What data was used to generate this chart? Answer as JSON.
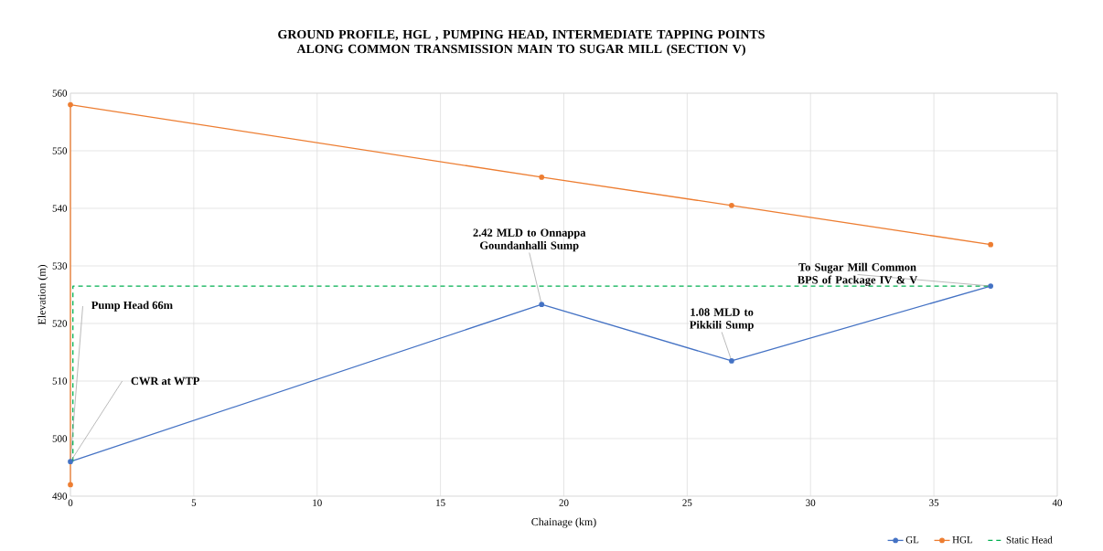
{
  "chart_data": {
    "type": "line",
    "title": "GROUND PROFILE, HGL , PUMPING HEAD, INTERMEDIATE TAPPING POINTS ALONG  COMMON TRANSMISSION MAIN TO SUGAR MILL (SECTION  V)",
    "xlabel": "Chainage  (km)",
    "ylabel": "Elevation (m)",
    "xlim": [
      0,
      40
    ],
    "xticks": [
      0,
      5,
      10,
      15,
      20,
      25,
      30,
      35,
      40
    ],
    "ylim": [
      490,
      560
    ],
    "yticks": [
      490,
      500,
      510,
      520,
      530,
      540,
      550,
      560
    ],
    "grid": true,
    "legend": "bottom right",
    "series": [
      {
        "name": "GL",
        "color": "#4472c4",
        "marker": "circle",
        "line_style": "solid",
        "x": [
          0,
          19.1,
          26.8,
          37.3
        ],
        "values": [
          496,
          523.3,
          513.5,
          526.5
        ]
      },
      {
        "name": "HGL",
        "color": "#ed7d31",
        "marker": "circle",
        "line_style": "solid",
        "x": [
          0,
          0,
          19.1,
          26.8,
          37.3
        ],
        "values": [
          492,
          558,
          545.4,
          540.5,
          533.7
        ]
      },
      {
        "name": "Static Head",
        "color": "#00b050",
        "marker": "none",
        "line_style": "dashed",
        "x": [
          0.1,
          0.1,
          37.3
        ],
        "values": [
          496,
          526.5,
          526.5
        ]
      }
    ],
    "annotations": [
      {
        "text": "Pump Head 66m",
        "x": 0,
        "y": 496
      },
      {
        "text": "CWR at WTP",
        "x": 0,
        "y": 496
      },
      {
        "text": "2.42 MLD to Onnappa Goundanhalli Sump",
        "x": 19.1,
        "y": 523.3
      },
      {
        "text": "1.08 MLD to Pikkili Sump",
        "x": 26.8,
        "y": 513.5
      },
      {
        "text": "To Sugar Mill Common BPS of Package IV & V",
        "x": 37.3,
        "y": 526.5
      }
    ]
  }
}
